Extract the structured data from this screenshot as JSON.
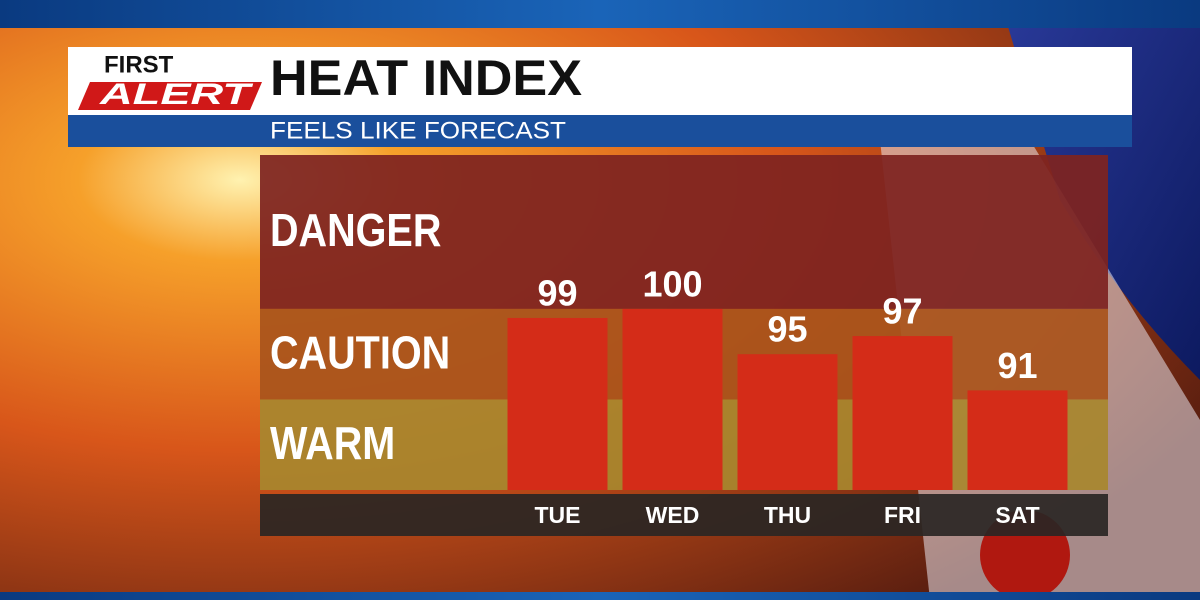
{
  "chart_data": {
    "type": "bar",
    "logo_text": [
      "FIRST",
      "ALERT"
    ],
    "title": "HEAT INDEX",
    "subtitle": "FEELS LIKE FORECAST",
    "categories": [
      "TUE",
      "WED",
      "THU",
      "FRI",
      "SAT"
    ],
    "values": [
      99,
      100,
      95,
      97,
      91
    ],
    "color": "#d42c18",
    "ylim": [
      80,
      117
    ],
    "zones": [
      {
        "label": "DANGER",
        "from": 100,
        "to": 117,
        "color": "#7e2420"
      },
      {
        "label": "CAUTION",
        "from": 90,
        "to": 100,
        "color": "#a9541c"
      },
      {
        "label": "WARM",
        "from": 80,
        "to": 90,
        "color": "#a8862e"
      }
    ]
  }
}
